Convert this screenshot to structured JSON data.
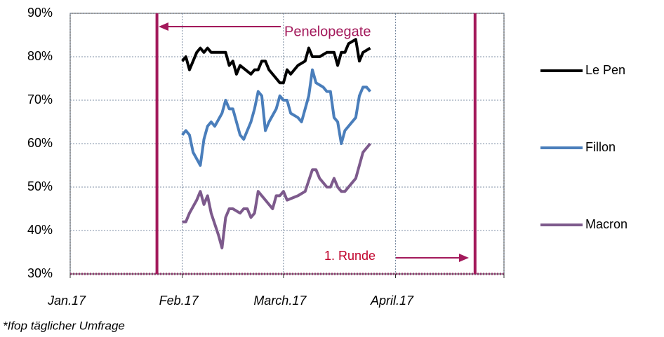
{
  "chart_data": {
    "type": "line",
    "xlim": [
      0,
      120
    ],
    "ylim": [
      30,
      90
    ],
    "xticks": [
      {
        "value": 0,
        "label": "Jan.17"
      },
      {
        "value": 31,
        "label": "Feb.17"
      },
      {
        "value": 59,
        "label": "March.17"
      },
      {
        "value": 90,
        "label": "April.17"
      },
      120
    ],
    "yticks": [
      {
        "value": 30,
        "label": "30%"
      },
      {
        "value": 40,
        "label": "40%"
      },
      {
        "value": 50,
        "label": "50%"
      },
      {
        "value": 60,
        "label": "60%"
      },
      {
        "value": 70,
        "label": "70%"
      },
      {
        "value": 80,
        "label": "80%"
      },
      {
        "value": 90,
        "label": "90%"
      }
    ],
    "grid": true,
    "legend": "right",
    "series": [
      {
        "name": "Le Pen",
        "color": "#000000",
        "x": [
          31,
          32,
          33,
          35,
          36,
          37,
          38,
          39,
          40,
          43,
          44,
          45,
          46,
          47,
          50,
          51,
          52,
          53,
          54,
          55,
          57,
          58,
          59,
          60,
          61,
          63,
          65,
          66,
          67,
          69,
          71,
          73,
          74,
          75,
          76,
          77,
          79,
          80,
          81,
          83
        ],
        "values": [
          79,
          80,
          77,
          81,
          82,
          81,
          82,
          81,
          81,
          81,
          78,
          79,
          76,
          78,
          76,
          77,
          77,
          79,
          79,
          77,
          75,
          74,
          74,
          77,
          76,
          78,
          79,
          82,
          80,
          80,
          81,
          81,
          78,
          81,
          81,
          83,
          84,
          79,
          81,
          82
        ]
      },
      {
        "name": "Fillon",
        "color": "#4a7ebb",
        "x": [
          31,
          32,
          33,
          34,
          36,
          37,
          38,
          39,
          40,
          42,
          43,
          44,
          45,
          47,
          48,
          50,
          51,
          52,
          53,
          54,
          55,
          57,
          58,
          59,
          60,
          61,
          63,
          64,
          66,
          67,
          68,
          70,
          71,
          72,
          73,
          74,
          75,
          76,
          79,
          80,
          81,
          82,
          83
        ],
        "values": [
          62,
          63,
          62,
          58,
          55,
          61,
          64,
          65,
          64,
          67,
          70,
          68,
          68,
          62,
          61,
          65,
          68,
          72,
          71,
          63,
          65,
          68,
          71,
          70,
          70,
          67,
          66,
          65,
          71,
          77,
          74,
          73,
          72,
          72,
          66,
          65,
          60,
          63,
          66,
          71,
          73,
          73,
          72
        ]
      },
      {
        "name": "Macron",
        "color": "#7d5a8c",
        "x": [
          31,
          32,
          33,
          35,
          36,
          37,
          38,
          39,
          41,
          42,
          43,
          44,
          45,
          47,
          48,
          49,
          50,
          51,
          52,
          53,
          56,
          57,
          58,
          59,
          60,
          63,
          65,
          67,
          68,
          69,
          71,
          72,
          73,
          74,
          75,
          76,
          78,
          79,
          80,
          81,
          83
        ],
        "values": [
          42,
          42,
          44,
          47,
          49,
          46,
          48,
          44,
          39,
          36,
          43,
          45,
          45,
          44,
          45,
          45,
          43,
          44,
          49,
          48,
          45,
          48,
          48,
          49,
          47,
          48,
          49,
          54,
          54,
          52,
          50,
          50,
          52,
          50,
          49,
          49,
          51,
          52,
          55,
          58,
          60
        ]
      }
    ],
    "annotations": [
      {
        "text": "Penelopegate",
        "x": 24
      },
      {
        "text": "1. Runde",
        "x": 112
      }
    ],
    "footnote": "*Ifop täglicher Umfrage"
  }
}
